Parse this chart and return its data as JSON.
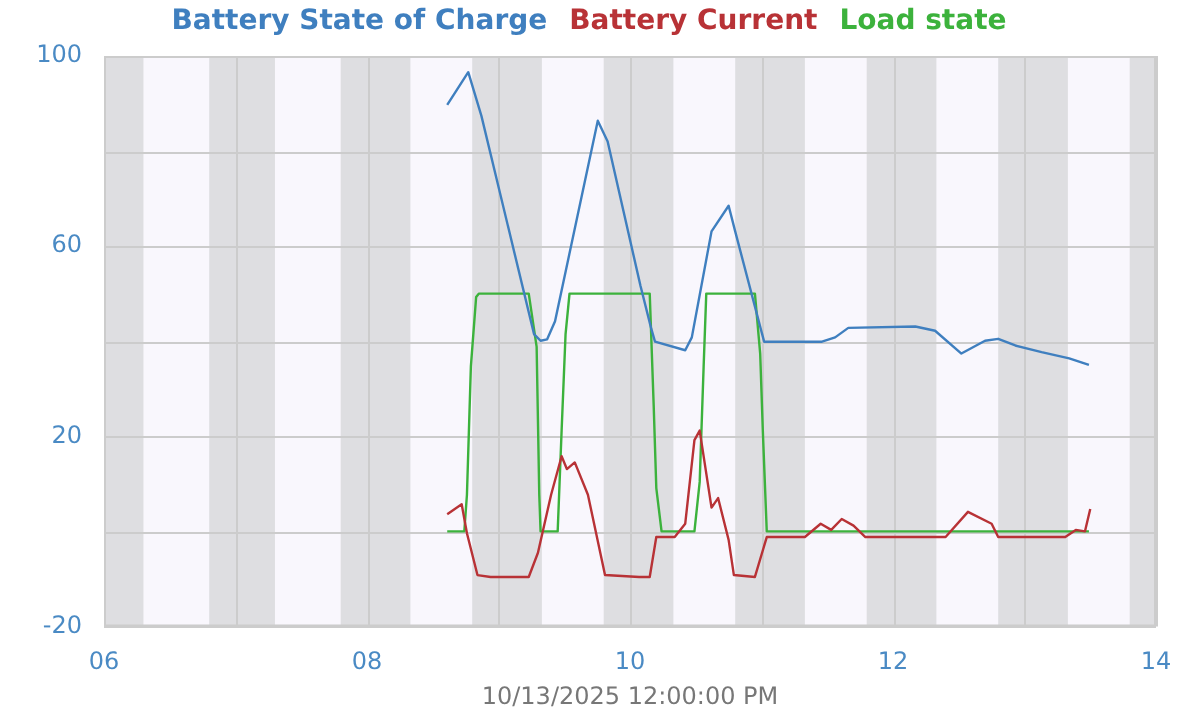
{
  "chart_data": {
    "type": "line",
    "xlabel": "10/13/2025 12:00:00 PM",
    "legend": "top",
    "grid": true,
    "xlim": [
      6,
      14
    ],
    "xticks": [
      {
        "value": 6,
        "label": "06"
      },
      {
        "value": 7,
        "label": null
      },
      {
        "value": 8,
        "label": "08"
      },
      {
        "value": 9,
        "label": null
      },
      {
        "value": 10,
        "label": "10"
      },
      {
        "value": 11,
        "label": null
      },
      {
        "value": 12,
        "label": "12"
      },
      {
        "value": 13,
        "label": null
      },
      {
        "value": 14,
        "label": "14"
      }
    ],
    "ylim": [
      -20,
      100
    ],
    "yticks": [
      -20,
      {
        "value": 0,
        "label": null
      },
      20,
      {
        "value": 40,
        "label": null
      },
      60,
      {
        "value": 80,
        "label": null
      },
      100
    ],
    "bands": [
      {
        "axis": "x",
        "from": 6,
        "to": 6.3,
        "color": "#dedee1"
      },
      {
        "axis": "x",
        "from": 6.8,
        "to": 7.3,
        "color": "#dedee1"
      },
      {
        "axis": "x",
        "from": 7.8,
        "to": 8.33,
        "color": "#dedee1"
      },
      {
        "axis": "x",
        "from": 8.8,
        "to": 9.33,
        "color": "#dedee1"
      },
      {
        "axis": "x",
        "from": 9.8,
        "to": 10.33,
        "color": "#dedee1"
      },
      {
        "axis": "x",
        "from": 10.8,
        "to": 11.33,
        "color": "#dedee1"
      },
      {
        "axis": "x",
        "from": 11.8,
        "to": 12.33,
        "color": "#dedee1"
      },
      {
        "axis": "x",
        "from": 12.8,
        "to": 13.33,
        "color": "#dedee1"
      },
      {
        "axis": "x",
        "from": 13.8,
        "to": 14,
        "color": "#dedee1"
      }
    ],
    "series": [
      {
        "name": "Battery State of Charge",
        "color": "#3f7fbf",
        "x": [
          8.61,
          8.77,
          8.87,
          9.27,
          9.32,
          9.37,
          9.43,
          9.755,
          9.83,
          10.08,
          10.16,
          10.19,
          10.42,
          10.47,
          10.62,
          10.75,
          10.8,
          11.02,
          11.46,
          11.56,
          11.66,
          12.17,
          12.32,
          12.52,
          12.7,
          12.8,
          12.93,
          13.13,
          13.34,
          13.49
        ],
        "values": [
          89.7,
          96.6,
          87.4,
          41.5,
          40.1,
          40.4,
          44.2,
          86.4,
          82,
          51.6,
          42.8,
          39.9,
          38.1,
          40.8,
          63.1,
          68.5,
          63.1,
          39.9,
          39.9,
          40.8,
          42.8,
          43.1,
          42.2,
          37.4,
          40.1,
          40.5,
          39.1,
          37.7,
          36.4,
          35
        ]
      },
      {
        "name": "Battery Current",
        "color": "#b83236",
        "x": [
          8.61,
          8.72,
          8.76,
          8.84,
          8.94,
          9.23,
          9.3,
          9.4,
          9.48,
          9.52,
          9.58,
          9.68,
          9.81,
          10.07,
          10.15,
          10.2,
          10.34,
          10.42,
          10.49,
          10.53,
          10.62,
          10.67,
          10.75,
          10.79,
          10.95,
          11.04,
          11.33,
          11.45,
          11.53,
          11.61,
          11.7,
          11.79,
          12.4,
          12.57,
          12.75,
          12.8,
          13.31,
          13.39,
          13.46,
          13.5
        ],
        "values": [
          3.6,
          5.7,
          -0.4,
          -9.2,
          -9.6,
          -9.6,
          -4.5,
          7.7,
          15.8,
          13.1,
          14.5,
          7.7,
          -9.2,
          -9.6,
          -9.6,
          -1.2,
          -1.2,
          1.6,
          19.2,
          21.2,
          5,
          7,
          -1.8,
          -9.2,
          -9.6,
          -1.2,
          -1.2,
          1.6,
          0.3,
          2.6,
          1.2,
          -1.2,
          -1.2,
          4.1,
          1.6,
          -1.2,
          -1.2,
          0.3,
          0,
          4.7
        ]
      },
      {
        "name": "Load state",
        "color": "#3cb23c",
        "x": [
          8.61,
          8.74,
          8.76,
          8.79,
          8.83,
          8.85,
          9.23,
          9.29,
          9.31,
          9.32,
          9.45,
          9.48,
          9.51,
          9.54,
          10.15,
          10.18,
          10.2,
          10.24,
          10.49,
          10.53,
          10.56,
          10.58,
          10.95,
          10.99,
          11.01,
          11.04,
          13.49
        ],
        "values": [
          0,
          0,
          7.7,
          34.7,
          49.3,
          50,
          50,
          38.8,
          7.7,
          0,
          0,
          21.2,
          41.5,
          50,
          50,
          26.6,
          9.1,
          0,
          0,
          10.4,
          34.7,
          50,
          50,
          37.4,
          21.2,
          0,
          0
        ]
      }
    ]
  }
}
